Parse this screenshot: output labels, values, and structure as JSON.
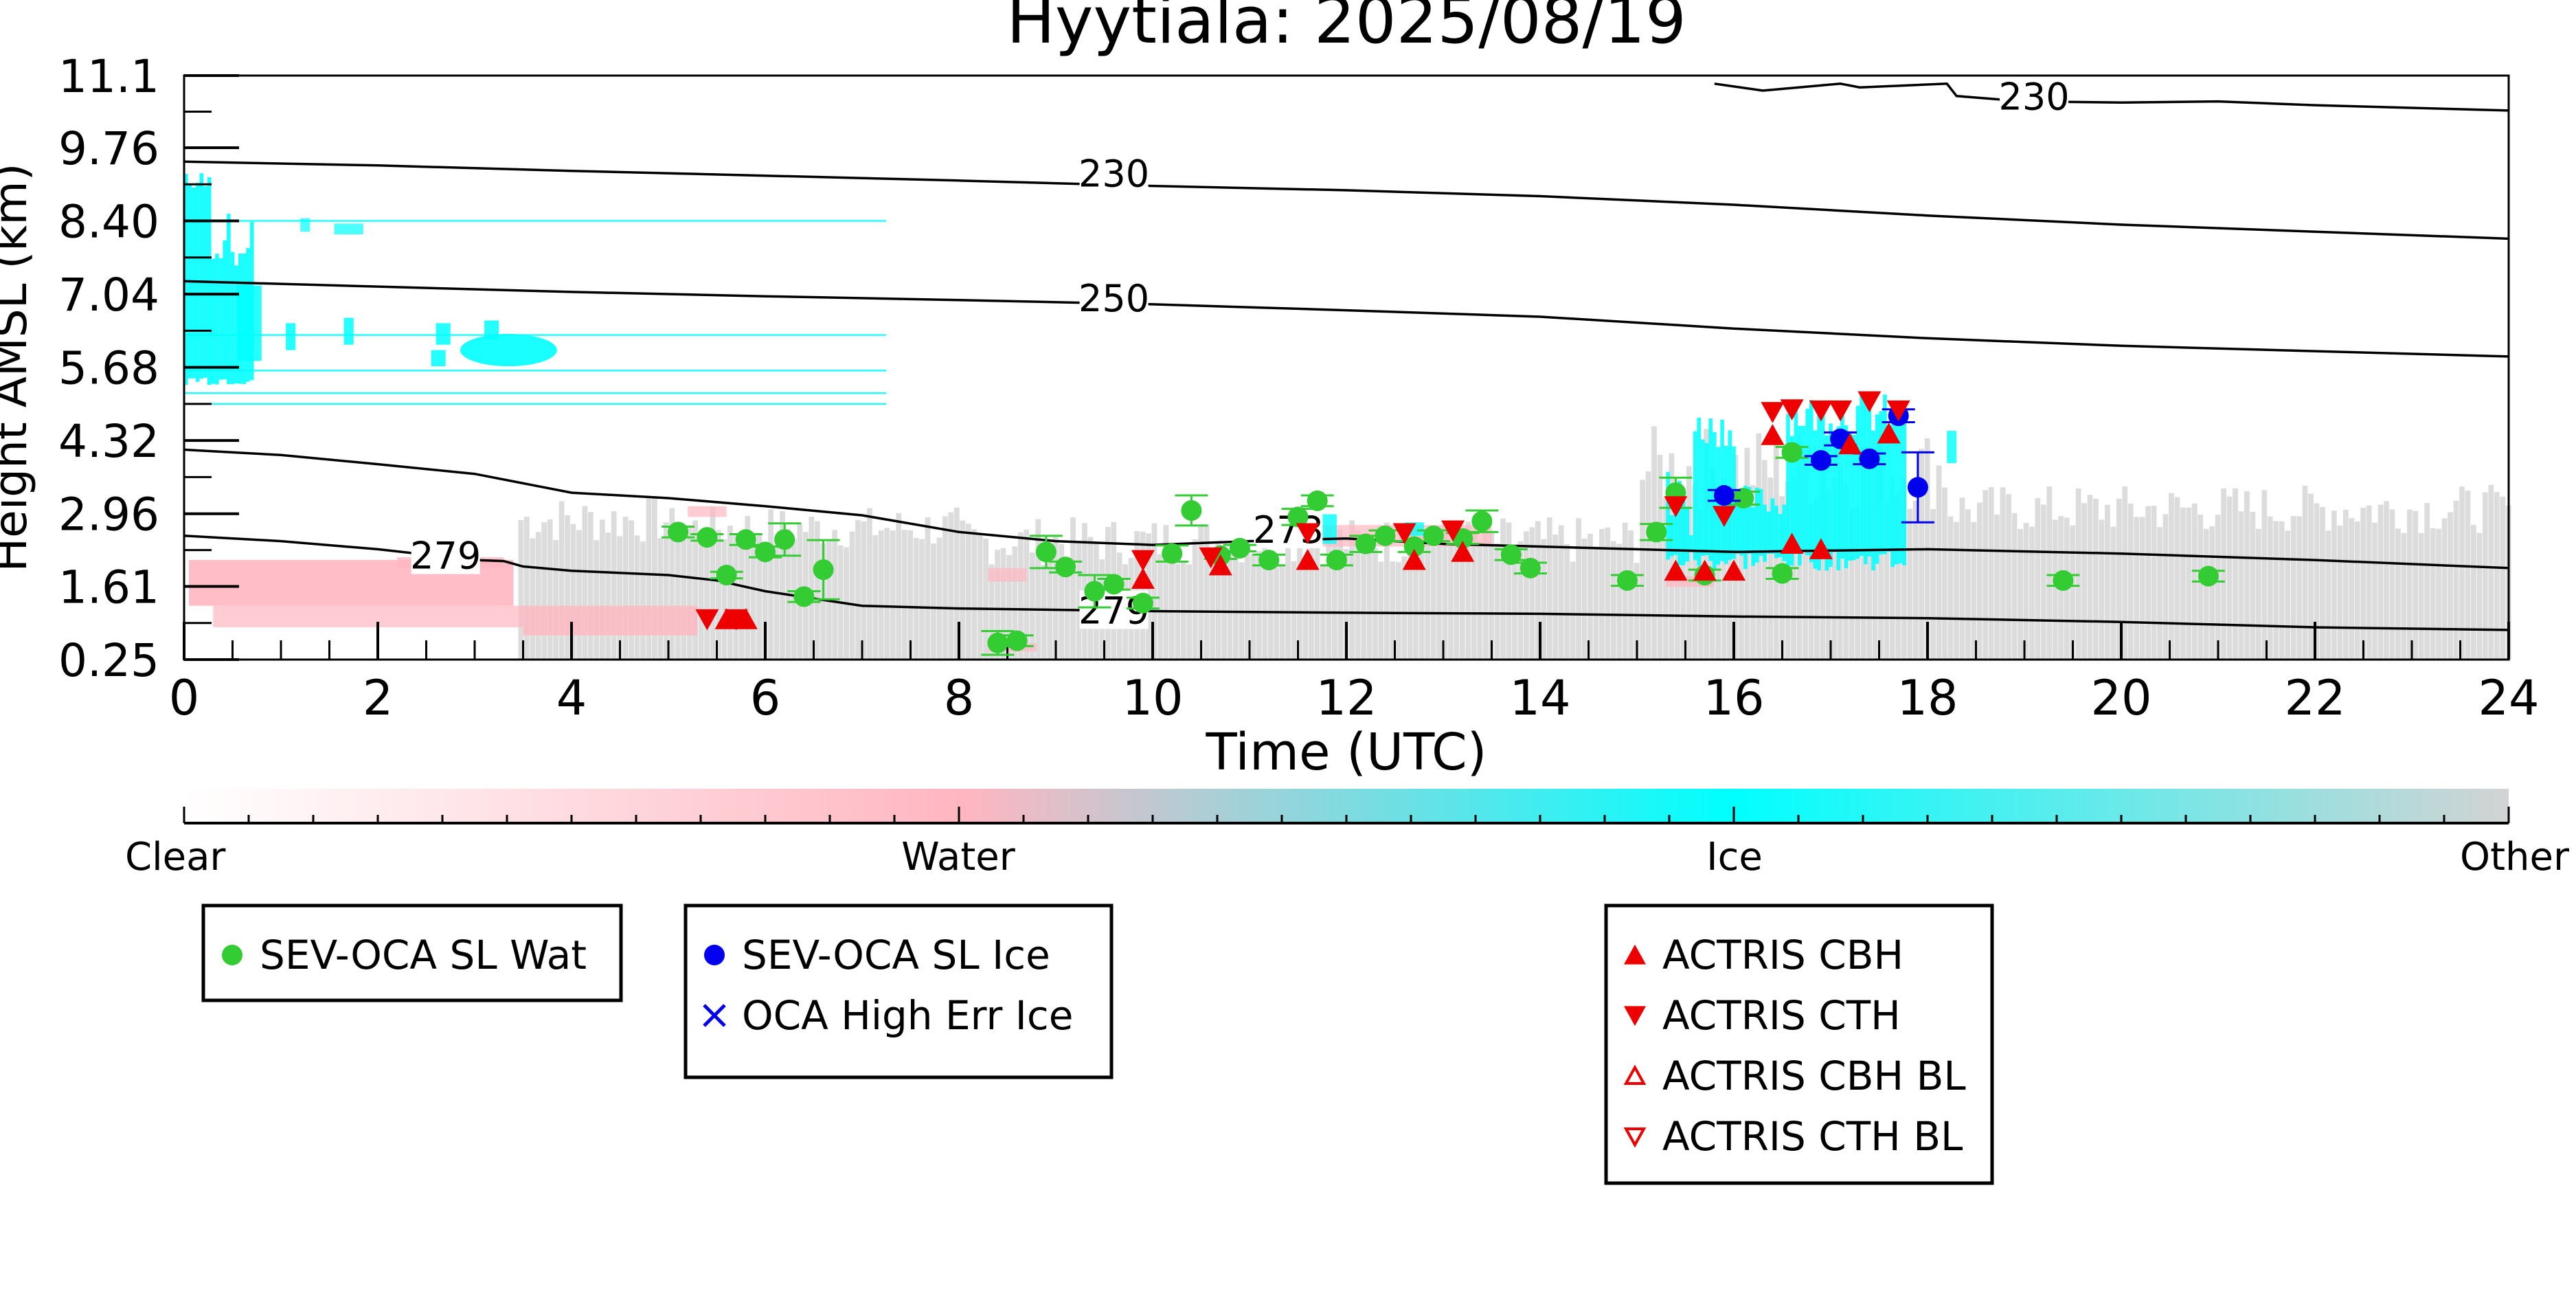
{
  "chart_data": {
    "type": "scatter",
    "title": "Hyytiala: 2025/08/19",
    "xlabel": "Time (UTC)",
    "ylabel": "Height AMSL (km)",
    "xlim": [
      0,
      24
    ],
    "ylim": [
      0.25,
      11.1
    ],
    "x_ticks": [
      0,
      2,
      4,
      6,
      8,
      10,
      12,
      14,
      16,
      18,
      20,
      22,
      24
    ],
    "y_ticks": [
      0.25,
      1.61,
      2.96,
      4.32,
      5.68,
      7.04,
      8.4,
      9.76,
      11.1
    ],
    "y_tick_labels": [
      "0.25",
      "1.61",
      "2.96",
      "4.32",
      "5.68",
      "7.04",
      "8.40",
      "9.76",
      "11.1"
    ],
    "background": "cloud phase classification curtain (clear / water / ice / other)",
    "colorbar": {
      "labels": [
        "Clear",
        "Water",
        "Ice",
        "Other"
      ],
      "colors": [
        "#ffffff",
        "#ffb6c1",
        "#00ffff",
        "#d3d3d3"
      ]
    },
    "temperature_contours": [
      {
        "label": "230",
        "points": [
          [
            0,
            9.5
          ],
          [
            2,
            9.43
          ],
          [
            4,
            9.33
          ],
          [
            6,
            9.24
          ],
          [
            8,
            9.15
          ],
          [
            10,
            9.05
          ],
          [
            12,
            8.97
          ],
          [
            14,
            8.86
          ],
          [
            16,
            8.7
          ],
          [
            18,
            8.5
          ],
          [
            20,
            8.33
          ],
          [
            22,
            8.2
          ],
          [
            24,
            8.07
          ]
        ]
      },
      {
        "label": "230",
        "points": [
          [
            15.8,
            10.95
          ],
          [
            16.3,
            10.82
          ],
          [
            17.1,
            10.95
          ],
          [
            17.3,
            10.88
          ],
          [
            18.2,
            10.95
          ],
          [
            18.3,
            10.72
          ],
          [
            19,
            10.62
          ],
          [
            20,
            10.6
          ],
          [
            21,
            10.62
          ],
          [
            22,
            10.55
          ],
          [
            24,
            10.45
          ]
        ]
      },
      {
        "label": "250",
        "points": [
          [
            0,
            7.28
          ],
          [
            2,
            7.18
          ],
          [
            4,
            7.08
          ],
          [
            6,
            7.0
          ],
          [
            8,
            6.93
          ],
          [
            10,
            6.85
          ],
          [
            12,
            6.74
          ],
          [
            14,
            6.62
          ],
          [
            16,
            6.4
          ],
          [
            18,
            6.22
          ],
          [
            20,
            6.08
          ],
          [
            22,
            5.98
          ],
          [
            24,
            5.88
          ]
        ]
      },
      {
        "label": "273",
        "points": [
          [
            0,
            4.15
          ],
          [
            1,
            4.05
          ],
          [
            2,
            3.88
          ],
          [
            3,
            3.7
          ],
          [
            4,
            3.35
          ],
          [
            5,
            3.25
          ],
          [
            6,
            3.1
          ],
          [
            7,
            2.93
          ],
          [
            8,
            2.62
          ],
          [
            9,
            2.45
          ],
          [
            10,
            2.38
          ],
          [
            11,
            2.45
          ],
          [
            12,
            2.5
          ],
          [
            13,
            2.4
          ],
          [
            14,
            2.35
          ],
          [
            16,
            2.25
          ],
          [
            18,
            2.3
          ],
          [
            20,
            2.22
          ],
          [
            22,
            2.1
          ],
          [
            24,
            1.95
          ]
        ]
      },
      {
        "label": "279",
        "points": [
          [
            0,
            2.55
          ],
          [
            1,
            2.45
          ],
          [
            2,
            2.3
          ],
          [
            3,
            2.1
          ],
          [
            3.3,
            2.08
          ],
          [
            3.5,
            1.98
          ],
          [
            4,
            1.9
          ],
          [
            5,
            1.82
          ],
          [
            5.5,
            1.72
          ],
          [
            6,
            1.52
          ],
          [
            7,
            1.25
          ],
          [
            8,
            1.2
          ],
          [
            10,
            1.15
          ],
          [
            12,
            1.12
          ],
          [
            14,
            1.1
          ],
          [
            16,
            1.05
          ],
          [
            18,
            1.02
          ],
          [
            20,
            0.95
          ],
          [
            22,
            0.85
          ],
          [
            24,
            0.8
          ]
        ]
      }
    ],
    "series": [
      {
        "name": "SEV-OCA SL Wat",
        "marker": "circle",
        "color": "#33cc33",
        "x": [
          5.1,
          5.4,
          5.6,
          5.8,
          6.0,
          6.2,
          6.4,
          6.6,
          8.4,
          8.6,
          8.9,
          9.1,
          9.4,
          9.6,
          9.9,
          10.2,
          10.4,
          10.7,
          10.9,
          11.2,
          11.5,
          11.7,
          11.9,
          12.2,
          12.4,
          12.7,
          12.9,
          13.2,
          13.4,
          13.7,
          13.9,
          14.9,
          15.2,
          15.4,
          15.7,
          16.1,
          16.5,
          16.6,
          19.4,
          20.9
        ],
        "y": [
          2.62,
          2.52,
          1.82,
          2.48,
          2.25,
          2.48,
          1.42,
          1.92,
          0.56,
          0.6,
          2.25,
          1.97,
          1.52,
          1.65,
          1.3,
          2.22,
          3.02,
          2.18,
          2.32,
          2.1,
          2.9,
          3.2,
          2.1,
          2.4,
          2.55,
          2.35,
          2.55,
          2.5,
          2.82,
          2.2,
          1.95,
          1.72,
          2.62,
          3.35,
          1.82,
          3.25,
          1.85,
          4.1,
          1.72,
          1.8
        ],
        "yerr": [
          0.1,
          0.06,
          0.06,
          0.1,
          0.1,
          0.3,
          0.1,
          0.55,
          0.22,
          0.1,
          0.3,
          0.1,
          0.3,
          0.1,
          0.1,
          0.15,
          0.28,
          0.06,
          0.06,
          0.1,
          0.15,
          0.1,
          0.1,
          0.15,
          0.1,
          0.1,
          0.1,
          0.1,
          0.2,
          0.1,
          0.1,
          0.1,
          0.15,
          0.28,
          0.1,
          0.12,
          0.1,
          0.1,
          0.1,
          0.1
        ]
      },
      {
        "name": "SEV-OCA SL Ice",
        "marker": "circle",
        "color": "#0000ee",
        "x": [
          15.9,
          16.9,
          17.1,
          17.4,
          17.7,
          17.9
        ],
        "y": [
          3.3,
          3.95,
          4.35,
          3.98,
          4.78,
          3.45
        ],
        "yerr": [
          0.1,
          0.08,
          0.12,
          0.1,
          0.12,
          0.65
        ]
      },
      {
        "name": "OCA High Err Ice",
        "marker": "x",
        "color": "#0000ee",
        "x": [],
        "y": []
      },
      {
        "name": "ACTRIS CBH",
        "marker": "triangle-up",
        "color": "#ee0000",
        "x": [
          5.6,
          5.8,
          9.9,
          10.7,
          11.6,
          12.7,
          13.2,
          15.4,
          15.7,
          16.0,
          16.4,
          16.6,
          16.9,
          17.2,
          17.6
        ],
        "y": [
          1.0,
          1.0,
          1.75,
          2.0,
          2.1,
          2.1,
          2.25,
          1.9,
          1.9,
          1.9,
          4.42,
          2.4,
          2.3,
          4.25,
          4.45
        ]
      },
      {
        "name": "ACTRIS CTH",
        "marker": "triangle-down",
        "color": "#ee0000",
        "x": [
          5.4,
          5.7,
          9.9,
          10.6,
          11.6,
          12.6,
          13.1,
          15.4,
          15.9,
          16.4,
          16.6,
          16.9,
          17.1,
          17.4,
          17.7
        ],
        "y": [
          1.0,
          1.0,
          2.1,
          2.15,
          2.6,
          2.6,
          2.65,
          3.1,
          2.92,
          4.85,
          4.9,
          4.88,
          4.88,
          5.05,
          4.88
        ]
      },
      {
        "name": "ACTRIS CBH BL",
        "marker": "triangle-up-open",
        "color": "#ee0000",
        "x": [],
        "y": []
      },
      {
        "name": "ACTRIS CTH BL",
        "marker": "triangle-down-open",
        "color": "#ee0000",
        "x": [],
        "y": []
      }
    ],
    "legend_boxes": [
      [
        "SEV-OCA SL Wat"
      ],
      [
        "SEV-OCA SL Ice",
        "OCA High Err Ice"
      ],
      [
        "ACTRIS CBH",
        "ACTRIS CTH",
        "ACTRIS CBH BL",
        "ACTRIS CTH BL"
      ]
    ]
  }
}
